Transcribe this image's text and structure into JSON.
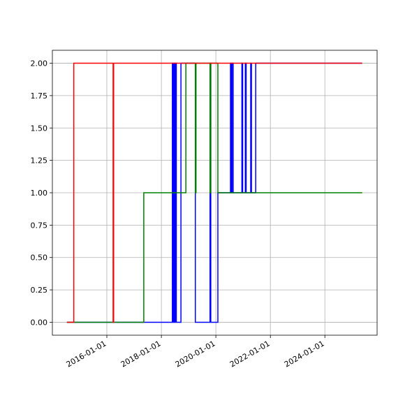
{
  "chart_data": {
    "type": "line",
    "step": "post",
    "grid": true,
    "xlim": [
      "2014-01-01",
      "2025-12-01"
    ],
    "xticks": [
      "2016-01-01",
      "2018-01-01",
      "2020-01-01",
      "2022-01-01",
      "2024-01-01"
    ],
    "ylim": [
      -0.1,
      2.1
    ],
    "yticks": [
      {
        "value": 0,
        "label": "0.00"
      },
      {
        "value": 0.25,
        "label": "0.25"
      },
      {
        "value": 0.5,
        "label": "0.50"
      },
      {
        "value": 0.75,
        "label": "0.75"
      },
      {
        "value": 1,
        "label": "1.00"
      },
      {
        "value": 1.25,
        "label": "1.25"
      },
      {
        "value": 1.5,
        "label": "1.50"
      },
      {
        "value": 1.75,
        "label": "1.75"
      },
      {
        "value": 2,
        "label": "2.00"
      }
    ],
    "series": [
      {
        "color": "#0000ff",
        "x": [
          "2014-07-15",
          "2018-05-28",
          "2018-06-10",
          "2018-06-20",
          "2018-07-01",
          "2018-07-10",
          "2018-07-20",
          "2018-09-20",
          "2019-04-01",
          "2019-10-15",
          "2019-10-25",
          "2020-01-28",
          "2020-07-15",
          "2020-07-25",
          "2020-08-05",
          "2020-08-20",
          "2020-12-15",
          "2020-12-25",
          "2021-01-30",
          "2021-02-10",
          "2021-04-12",
          "2021-04-22",
          "2021-06-18",
          "2025-05-15"
        ],
        "values": [
          0,
          2,
          0,
          2,
          0,
          2,
          0,
          2,
          0,
          2,
          0,
          1,
          2,
          1,
          2,
          1,
          2,
          1,
          2,
          1,
          2,
          1,
          2,
          2
        ]
      },
      {
        "color": "#008000",
        "x": [
          "2014-07-15",
          "2017-05-10",
          "2018-11-25",
          "2019-04-01",
          "2019-04-10",
          "2019-10-15",
          "2019-10-25",
          "2020-01-28",
          "2025-05-15"
        ],
        "values": [
          0,
          1,
          2,
          1,
          2,
          1,
          2,
          1,
          1
        ]
      },
      {
        "color": "#ff0000",
        "x": [
          "2014-07-15",
          "2014-10-15",
          "2016-03-25",
          "2016-04-01",
          "2025-05-15"
        ],
        "values": [
          0,
          2,
          0,
          2,
          2
        ]
      }
    ]
  }
}
